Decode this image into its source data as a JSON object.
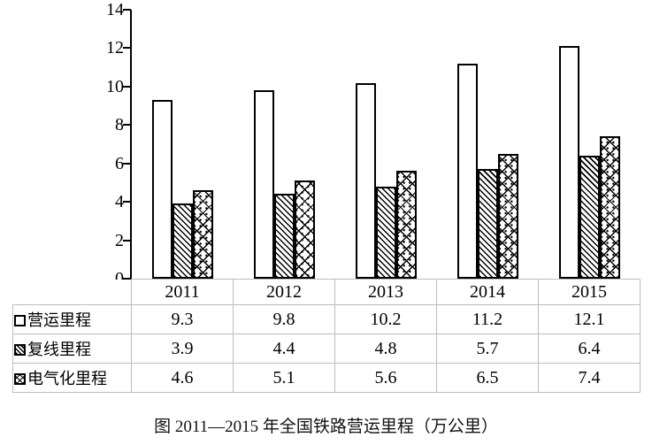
{
  "chart_data": {
    "type": "bar",
    "categories": [
      "2011",
      "2012",
      "2013",
      "2014",
      "2015"
    ],
    "series": [
      {
        "name": "营运里程",
        "values": [
          9.3,
          9.8,
          10.2,
          11.2,
          12.1
        ],
        "pattern": "solid-white"
      },
      {
        "name": "复线里程",
        "values": [
          3.9,
          4.4,
          4.8,
          5.7,
          6.4
        ],
        "pattern": "diagonal-hatch"
      },
      {
        "name": "电气化里程",
        "values": [
          4.6,
          5.1,
          5.6,
          6.5,
          7.4
        ],
        "pattern": "diamond-crosshatch"
      }
    ],
    "ylim": [
      0,
      14
    ],
    "yticks": [
      0,
      2,
      4,
      6,
      8,
      10,
      12,
      14
    ],
    "grid": false,
    "legend_position": "table-left",
    "title": "图 2011—2015 年全国铁路营运里程（万公里）"
  },
  "caption": "图  2011—2015 年全国铁路营运里程（万公里）",
  "colors": {
    "bar_outline": "#000000",
    "bar_fill": "#ffffff",
    "table_border": "#bdbdbd",
    "text": "#000000",
    "background": "#ffffff"
  }
}
